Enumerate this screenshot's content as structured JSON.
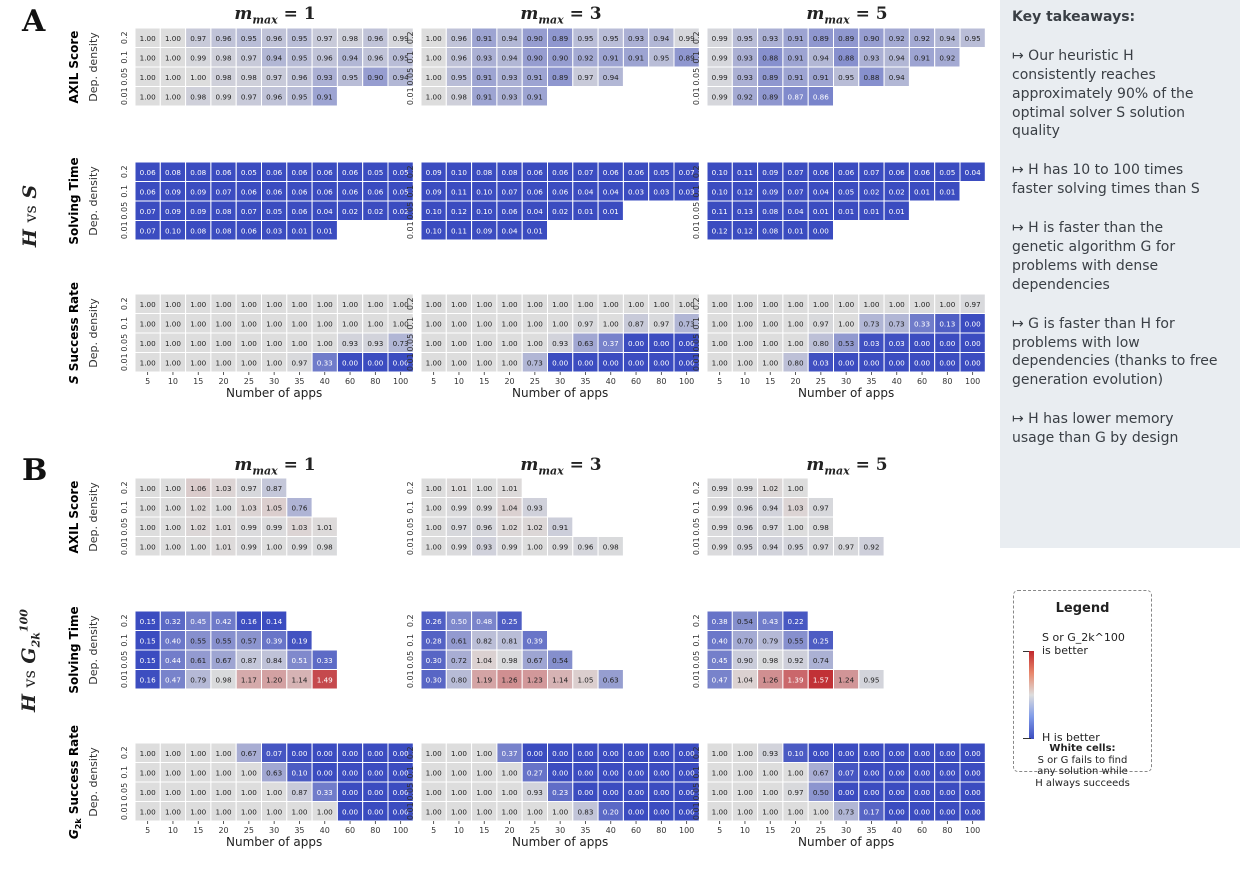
{
  "panels": {
    "A": {
      "letter": "A",
      "group_label": {
        "left": "H",
        "vs": "vs",
        "right": "S"
      }
    },
    "B": {
      "letter": "B",
      "group_label": {
        "left": "H",
        "vs": "vs",
        "right": "G",
        "right_sub": "2k",
        "right_sup": "100"
      }
    }
  },
  "column_titles": [
    "m_max = 1",
    "m_max = 3",
    "m_max = 5"
  ],
  "takeaways": {
    "title": "Key takeaways:",
    "items": [
      "↦ Our heuristic  H\nconsistently reaches\napproximately 90% of the\noptimal solver  S solution\nquality",
      "↦  H has 10 to 100 times\nfaster solving times than  S",
      "↦  H is faster than the\ngenetic algorithm  G for\nproblems with dense\ndependencies",
      "↦  G is faster than  H for\nproblems with low\ndependencies (thanks to free\ngeneration evolution)",
      "↦  H has lower memory\nusage than  G by design"
    ]
  },
  "legend": {
    "title": "Legend",
    "top_label": "S or G_2k^100\nis better",
    "bottom_label": "H is better",
    "white_title": "White cells:",
    "white_text": "S or G fails to find\nany solution while\nH always succeeds"
  },
  "colors": {
    "neutral": "#dcdcdc",
    "better_h": "#3b4cc0",
    "better_other": "#c0282d"
  },
  "chart_data": {
    "type": "heatmap",
    "x_categories": [
      "5",
      "10",
      "15",
      "20",
      "25",
      "30",
      "35",
      "40",
      "60",
      "80",
      "100"
    ],
    "y_categories": [
      "0.2",
      "0.1",
      "0.05",
      "0.01"
    ],
    "xlabel": "Number of apps",
    "ylabel": "Dep. density",
    "panels": [
      {
        "panel": "A",
        "rows": [
          {
            "metric": "AXIL Score",
            "scale": "score",
            "m1": [
              [
                1.0,
                1.0,
                0.97,
                0.96,
                0.95,
                0.96,
                0.95,
                0.97,
                0.98,
                0.96,
                0.99
              ],
              [
                1.0,
                1.0,
                0.99,
                0.98,
                0.97,
                0.94,
                0.95,
                0.96,
                0.94,
                0.96,
                0.95
              ],
              [
                1.0,
                1.0,
                1.0,
                0.98,
                0.98,
                0.97,
                0.96,
                0.93,
                0.95,
                0.9,
                0.94
              ],
              [
                1.0,
                1.0,
                0.98,
                0.99,
                0.97,
                0.96,
                0.95,
                0.91
              ]
            ],
            "m3": [
              [
                1.0,
                0.96,
                0.91,
                0.94,
                0.9,
                0.89,
                0.95,
                0.95,
                0.93,
                0.94,
                0.99
              ],
              [
                1.0,
                0.96,
                0.93,
                0.94,
                0.9,
                0.9,
                0.92,
                0.91,
                0.91,
                0.95,
                0.89
              ],
              [
                1.0,
                0.95,
                0.91,
                0.93,
                0.91,
                0.89,
                0.97,
                0.94
              ],
              [
                1.0,
                0.98,
                0.91,
                0.93,
                0.91
              ]
            ],
            "m5": [
              [
                0.99,
                0.95,
                0.93,
                0.91,
                0.89,
                0.89,
                0.9,
                0.92,
                0.92,
                0.94,
                0.95
              ],
              [
                0.99,
                0.93,
                0.88,
                0.91,
                0.94,
                0.88,
                0.93,
                0.94,
                0.91,
                0.92
              ],
              [
                0.99,
                0.93,
                0.89,
                0.91,
                0.91,
                0.95,
                0.88,
                0.94
              ],
              [
                0.99,
                0.92,
                0.89,
                0.87,
                0.86
              ]
            ]
          },
          {
            "metric": "Solving Time",
            "scale": "time",
            "m1": [
              [
                0.06,
                0.08,
                0.08,
                0.06,
                0.05,
                0.06,
                0.06,
                0.06,
                0.06,
                0.05,
                0.05
              ],
              [
                0.06,
                0.09,
                0.09,
                0.07,
                0.06,
                0.06,
                0.06,
                0.06,
                0.06,
                0.06,
                0.05
              ],
              [
                0.07,
                0.09,
                0.09,
                0.08,
                0.07,
                0.05,
                0.06,
                0.04,
                0.02,
                0.02,
                0.02
              ],
              [
                0.07,
                0.1,
                0.08,
                0.08,
                0.06,
                0.03,
                0.01,
                0.01
              ]
            ],
            "m3": [
              [
                0.09,
                0.1,
                0.08,
                0.08,
                0.06,
                0.06,
                0.07,
                0.06,
                0.06,
                0.05,
                0.07
              ],
              [
                0.09,
                0.11,
                0.1,
                0.07,
                0.06,
                0.06,
                0.04,
                0.04,
                0.03,
                0.03,
                0.03
              ],
              [
                0.1,
                0.12,
                0.1,
                0.06,
                0.04,
                0.02,
                0.01,
                0.01
              ],
              [
                0.1,
                0.11,
                0.09,
                0.04,
                0.01
              ]
            ],
            "m5": [
              [
                0.1,
                0.11,
                0.09,
                0.07,
                0.06,
                0.06,
                0.07,
                0.06,
                0.06,
                0.05,
                0.04
              ],
              [
                0.1,
                0.12,
                0.09,
                0.07,
                0.04,
                0.05,
                0.02,
                0.02,
                0.01,
                0.01
              ],
              [
                0.11,
                0.13,
                0.08,
                0.04,
                0.01,
                0.01,
                0.01,
                0.01
              ],
              [
                0.12,
                0.12,
                0.08,
                0.01,
                0.0
              ]
            ]
          },
          {
            "metric": "S Success Rate",
            "scale": "success",
            "m1": [
              [
                1.0,
                1.0,
                1.0,
                1.0,
                1.0,
                1.0,
                1.0,
                1.0,
                1.0,
                1.0,
                1.0
              ],
              [
                1.0,
                1.0,
                1.0,
                1.0,
                1.0,
                1.0,
                1.0,
                1.0,
                1.0,
                1.0,
                1.0
              ],
              [
                1.0,
                1.0,
                1.0,
                1.0,
                1.0,
                1.0,
                1.0,
                1.0,
                0.93,
                0.93,
                0.73
              ],
              [
                1.0,
                1.0,
                1.0,
                1.0,
                1.0,
                1.0,
                0.97,
                0.33,
                0.0,
                0.0,
                0.0
              ]
            ],
            "m3": [
              [
                1.0,
                1.0,
                1.0,
                1.0,
                1.0,
                1.0,
                1.0,
                1.0,
                1.0,
                1.0,
                1.0
              ],
              [
                1.0,
                1.0,
                1.0,
                1.0,
                1.0,
                1.0,
                0.97,
                1.0,
                0.87,
                0.97,
                0.73
              ],
              [
                1.0,
                1.0,
                1.0,
                1.0,
                1.0,
                0.93,
                0.63,
                0.37,
                0.0,
                0.0,
                0.0
              ],
              [
                1.0,
                1.0,
                1.0,
                1.0,
                0.73,
                0.0,
                0.0,
                0.0,
                0.0,
                0.0,
                0.0
              ]
            ],
            "m5": [
              [
                1.0,
                1.0,
                1.0,
                1.0,
                1.0,
                1.0,
                1.0,
                1.0,
                1.0,
                1.0,
                0.97
              ],
              [
                1.0,
                1.0,
                1.0,
                1.0,
                0.97,
                1.0,
                0.73,
                0.73,
                0.33,
                0.13,
                0.0
              ],
              [
                1.0,
                1.0,
                1.0,
                1.0,
                0.8,
                0.53,
                0.03,
                0.03,
                0.0,
                0.0,
                0.0
              ],
              [
                1.0,
                1.0,
                1.0,
                0.8,
                0.03,
                0.0,
                0.0,
                0.0,
                0.0,
                0.0,
                0.0
              ]
            ]
          }
        ]
      },
      {
        "panel": "B",
        "rows": [
          {
            "metric": "AXIL Score",
            "scale": "ratio",
            "m1": [
              [
                1.0,
                1.0,
                1.06,
                1.03,
                0.97,
                0.87
              ],
              [
                1.0,
                1.0,
                1.02,
                1.0,
                1.03,
                1.05,
                0.76
              ],
              [
                1.0,
                1.0,
                1.02,
                1.01,
                0.99,
                0.99,
                1.03,
                1.01
              ],
              [
                1.0,
                1.0,
                1.0,
                1.01,
                0.99,
                1.0,
                0.99,
                0.98
              ]
            ],
            "m3": [
              [
                1.0,
                1.01,
                1.0,
                1.01
              ],
              [
                1.0,
                0.99,
                0.99,
                1.04,
                0.93
              ],
              [
                1.0,
                0.97,
                0.96,
                1.02,
                1.02,
                0.91
              ],
              [
                1.0,
                0.99,
                0.93,
                0.99,
                1.0,
                0.99,
                0.96,
                0.98
              ]
            ],
            "m5": [
              [
                0.99,
                0.99,
                1.02,
                1.0
              ],
              [
                0.99,
                0.96,
                0.94,
                1.03,
                0.97
              ],
              [
                0.99,
                0.96,
                0.97,
                1.0,
                0.98
              ],
              [
                0.99,
                0.95,
                0.94,
                0.95,
                0.97,
                0.97,
                0.92
              ]
            ]
          },
          {
            "metric": "Solving Time",
            "scale": "ratio",
            "m1": [
              [
                0.15,
                0.32,
                0.45,
                0.42,
                0.16,
                0.14
              ],
              [
                0.15,
                0.4,
                0.55,
                0.55,
                0.57,
                0.39,
                0.19
              ],
              [
                0.15,
                0.44,
                0.61,
                0.67,
                0.87,
                0.84,
                0.51,
                0.33
              ],
              [
                0.16,
                0.47,
                0.79,
                0.98,
                1.17,
                1.2,
                1.14,
                1.49
              ]
            ],
            "m3": [
              [
                0.26,
                0.5,
                0.48,
                0.25
              ],
              [
                0.28,
                0.61,
                0.82,
                0.81,
                0.39
              ],
              [
                0.3,
                0.72,
                1.04,
                0.98,
                0.67,
                0.54
              ],
              [
                0.3,
                0.8,
                1.19,
                1.26,
                1.23,
                1.14,
                1.05,
                0.63
              ]
            ],
            "m5": [
              [
                0.38,
                0.54,
                0.43,
                0.22
              ],
              [
                0.4,
                0.7,
                0.79,
                0.55,
                0.25
              ],
              [
                0.45,
                0.9,
                0.98,
                0.92,
                0.74
              ],
              [
                0.47,
                1.04,
                1.26,
                1.39,
                1.57,
                1.24,
                0.95
              ]
            ]
          },
          {
            "metric": "G_2k^100 Success Rate",
            "scale": "success",
            "m1": [
              [
                1.0,
                1.0,
                1.0,
                1.0,
                0.67,
                0.07,
                0.0,
                0.0,
                0.0,
                0.0,
                0.0
              ],
              [
                1.0,
                1.0,
                1.0,
                1.0,
                1.0,
                0.63,
                0.1,
                0.0,
                0.0,
                0.0,
                0.0
              ],
              [
                1.0,
                1.0,
                1.0,
                1.0,
                1.0,
                1.0,
                0.87,
                0.33,
                0.0,
                0.0,
                0.0
              ],
              [
                1.0,
                1.0,
                1.0,
                1.0,
                1.0,
                1.0,
                1.0,
                1.0,
                0.0,
                0.0,
                0.0
              ]
            ],
            "m3": [
              [
                1.0,
                1.0,
                1.0,
                0.37,
                0.0,
                0.0,
                0.0,
                0.0,
                0.0,
                0.0,
                0.0
              ],
              [
                1.0,
                1.0,
                1.0,
                1.0,
                0.27,
                0.0,
                0.0,
                0.0,
                0.0,
                0.0,
                0.0
              ],
              [
                1.0,
                1.0,
                1.0,
                1.0,
                0.93,
                0.23,
                0.0,
                0.0,
                0.0,
                0.0,
                0.0
              ],
              [
                1.0,
                1.0,
                1.0,
                1.0,
                1.0,
                1.0,
                0.83,
                0.2,
                0.0,
                0.0,
                0.0
              ]
            ],
            "m5": [
              [
                1.0,
                1.0,
                0.93,
                0.1,
                0.0,
                0.0,
                0.0,
                0.0,
                0.0,
                0.0,
                0.0
              ],
              [
                1.0,
                1.0,
                1.0,
                1.0,
                0.67,
                0.07,
                0.0,
                0.0,
                0.0,
                0.0,
                0.0
              ],
              [
                1.0,
                1.0,
                1.0,
                0.97,
                0.5,
                0.0,
                0.0,
                0.0,
                0.0,
                0.0,
                0.0
              ],
              [
                1.0,
                1.0,
                1.0,
                1.0,
                1.0,
                0.73,
                0.17,
                0.0,
                0.0,
                0.0,
                0.0
              ]
            ]
          }
        ]
      }
    ]
  }
}
